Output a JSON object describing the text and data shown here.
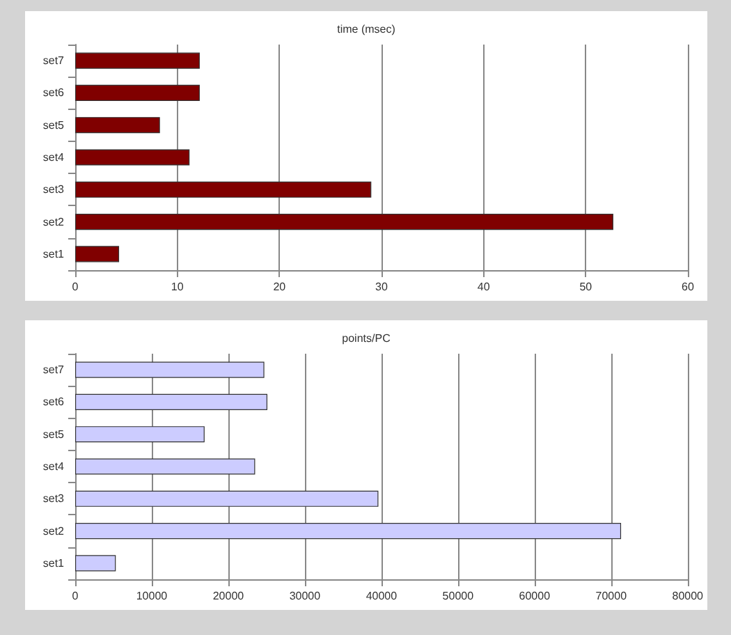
{
  "chart_data": [
    {
      "type": "bar",
      "orientation": "horizontal",
      "title": "time (msec)",
      "categories": [
        "set7",
        "set6",
        "set5",
        "set4",
        "set3",
        "set2",
        "set1"
      ],
      "values": [
        12.2,
        12.2,
        8.3,
        11.2,
        29,
        52.7,
        4.3
      ],
      "color": "#800000",
      "xlim": [
        0,
        60
      ],
      "xticks": [
        0,
        10,
        20,
        30,
        40,
        50,
        60
      ],
      "grid": "x"
    },
    {
      "type": "bar",
      "orientation": "horizontal",
      "title": "points/PC",
      "categories": [
        "set7",
        "set6",
        "set5",
        "set4",
        "set3",
        "set2",
        "set1"
      ],
      "values": [
        24700,
        25100,
        16900,
        23500,
        39600,
        71300,
        5300
      ],
      "color": "#ccccff",
      "xlim": [
        0,
        80000
      ],
      "xticks": [
        0,
        10000,
        20000,
        30000,
        40000,
        50000,
        60000,
        70000,
        80000
      ],
      "grid": "x"
    }
  ]
}
